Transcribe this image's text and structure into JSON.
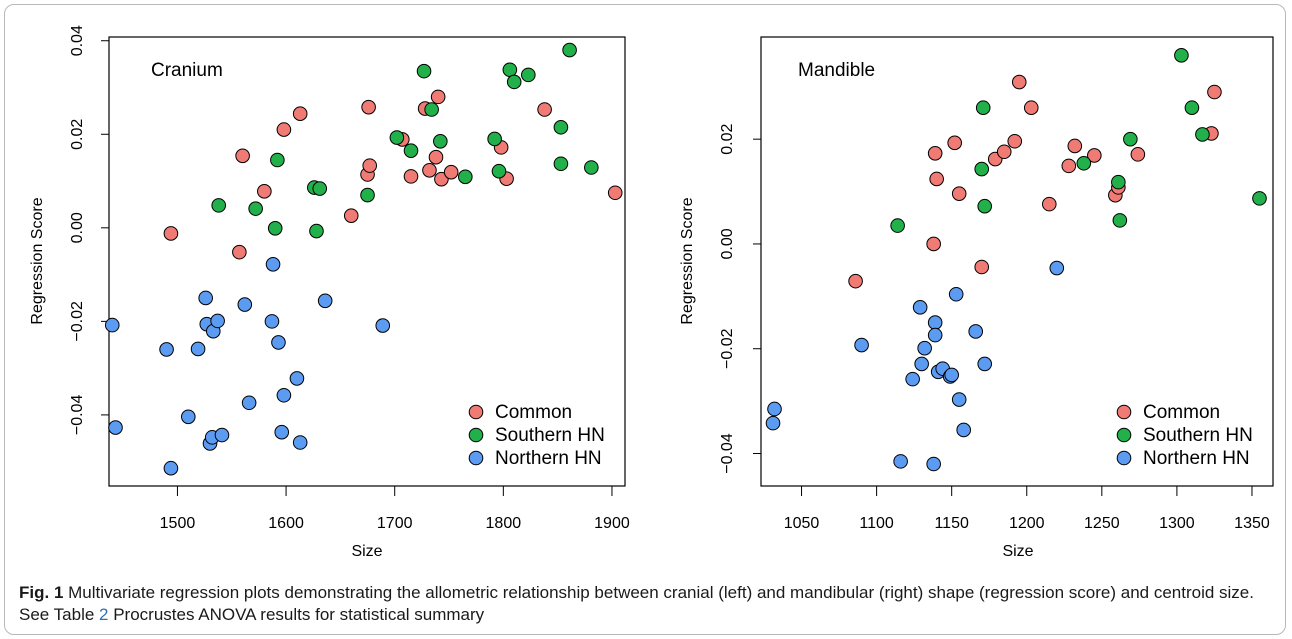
{
  "chart_data": [
    {
      "type": "scatter",
      "annotation": "Cranium",
      "xlabel": "Size",
      "ylabel": "Regression Score",
      "xlim": [
        1437,
        1912
      ],
      "ylim": [
        -0.0552,
        0.0408
      ],
      "xticks": [
        "1500",
        "1600",
        "1700",
        "1800",
        "1900"
      ],
      "yticks": [
        "−0.04",
        "−0.02",
        "0.00",
        "0.02",
        "0.04"
      ],
      "legend_position": "bottom-right",
      "grid": false,
      "series": [
        {
          "name": "Common",
          "color": "#f07a74",
          "points": [
            [
              1494,
              -0.0012
            ],
            [
              1557,
              -0.0052
            ],
            [
              1560,
              0.0154
            ],
            [
              1580,
              0.0078
            ],
            [
              1598,
              0.021
            ],
            [
              1613,
              0.0244
            ],
            [
              1660,
              0.0026
            ],
            [
              1675,
              0.0114
            ],
            [
              1676,
              0.0258
            ],
            [
              1677,
              0.0133
            ],
            [
              1707,
              0.0189
            ],
            [
              1715,
              0.011
            ],
            [
              1728,
              0.0255
            ],
            [
              1732,
              0.0123
            ],
            [
              1738,
              0.0151
            ],
            [
              1740,
              0.028
            ],
            [
              1743,
              0.0104
            ],
            [
              1752,
              0.0119
            ],
            [
              1798,
              0.0172
            ],
            [
              1803,
              0.0105
            ],
            [
              1838,
              0.0253
            ],
            [
              1903,
              0.0075
            ]
          ]
        },
        {
          "name": "Southern HN",
          "color": "#22b04b",
          "points": [
            [
              1538,
              0.0048
            ],
            [
              1572,
              0.0041
            ],
            [
              1590,
              -0.0001
            ],
            [
              1592,
              0.0145
            ],
            [
              1626,
              0.0086
            ],
            [
              1628,
              -0.0007
            ],
            [
              1631,
              0.0084
            ],
            [
              1675,
              0.007
            ],
            [
              1702,
              0.0193
            ],
            [
              1715,
              0.0165
            ],
            [
              1727,
              0.0335
            ],
            [
              1734,
              0.0253
            ],
            [
              1742,
              0.0185
            ],
            [
              1765,
              0.0109
            ],
            [
              1792,
              0.019
            ],
            [
              1796,
              0.0121
            ],
            [
              1806,
              0.0338
            ],
            [
              1810,
              0.0312
            ],
            [
              1823,
              0.0327
            ],
            [
              1853,
              0.0137
            ],
            [
              1853,
              0.0215
            ],
            [
              1861,
              0.038
            ],
            [
              1881,
              0.0129
            ]
          ]
        },
        {
          "name": "Northern HN",
          "color": "#5b9cf2",
          "points": [
            [
              1440,
              -0.0208
            ],
            [
              1443,
              -0.0427
            ],
            [
              1490,
              -0.026
            ],
            [
              1494,
              -0.0514
            ],
            [
              1510,
              -0.0404
            ],
            [
              1519,
              -0.0259
            ],
            [
              1526,
              -0.015
            ],
            [
              1527,
              -0.0206
            ],
            [
              1530,
              -0.0461
            ],
            [
              1532,
              -0.0448
            ],
            [
              1533,
              -0.0221
            ],
            [
              1537,
              -0.0199
            ],
            [
              1541,
              -0.0443
            ],
            [
              1562,
              -0.0164
            ],
            [
              1566,
              -0.0374
            ],
            [
              1587,
              -0.02
            ],
            [
              1588,
              -0.0078
            ],
            [
              1593,
              -0.0245
            ],
            [
              1596,
              -0.0437
            ],
            [
              1598,
              -0.0358
            ],
            [
              1610,
              -0.0322
            ],
            [
              1613,
              -0.0459
            ],
            [
              1636,
              -0.0156
            ],
            [
              1689,
              -0.0209
            ]
          ]
        }
      ]
    },
    {
      "type": "scatter",
      "annotation": "Mandible",
      "xlabel": "Size",
      "ylabel": "Regression Score",
      "xlim": [
        1023,
        1364
      ],
      "ylim": [
        -0.0462,
        0.0395
      ],
      "xticks": [
        "1050",
        "1100",
        "1150",
        "1200",
        "1250",
        "1300",
        "1350"
      ],
      "yticks": [
        "−0.04",
        "−0.02",
        "0.00",
        "0.02"
      ],
      "legend_position": "bottom-right",
      "grid": false,
      "series": [
        {
          "name": "Common",
          "color": "#f07a74",
          "points": [
            [
              1086,
              -0.0071
            ],
            [
              1138,
              0.0
            ],
            [
              1139,
              0.0173
            ],
            [
              1140,
              0.0124
            ],
            [
              1152,
              0.0193
            ],
            [
              1155,
              0.0096
            ],
            [
              1170,
              -0.0044
            ],
            [
              1179,
              0.0162
            ],
            [
              1185,
              0.0176
            ],
            [
              1192,
              0.0196
            ],
            [
              1195,
              0.0309
            ],
            [
              1203,
              0.026
            ],
            [
              1215,
              0.0076
            ],
            [
              1228,
              0.0149
            ],
            [
              1232,
              0.0187
            ],
            [
              1245,
              0.0169
            ],
            [
              1259,
              0.0093
            ],
            [
              1261,
              0.0108
            ],
            [
              1274,
              0.0171
            ],
            [
              1323,
              0.0211
            ],
            [
              1325,
              0.029
            ]
          ]
        },
        {
          "name": "Southern HN",
          "color": "#22b04b",
          "points": [
            [
              1114,
              0.0035
            ],
            [
              1170,
              0.0143
            ],
            [
              1171,
              0.026
            ],
            [
              1172,
              0.0072
            ],
            [
              1238,
              0.0154
            ],
            [
              1261,
              0.0118
            ],
            [
              1262,
              0.0045
            ],
            [
              1269,
              0.02
            ],
            [
              1303,
              0.036
            ],
            [
              1310,
              0.026
            ],
            [
              1317,
              0.0209
            ],
            [
              1355,
              0.0087
            ]
          ]
        },
        {
          "name": "Northern HN",
          "color": "#5b9cf2",
          "points": [
            [
              1032,
              -0.0315
            ],
            [
              1031,
              -0.0342
            ],
            [
              1090,
              -0.0193
            ],
            [
              1116,
              -0.0415
            ],
            [
              1124,
              -0.0258
            ],
            [
              1129,
              -0.0121
            ],
            [
              1130,
              -0.0229
            ],
            [
              1132,
              -0.0199
            ],
            [
              1139,
              -0.015
            ],
            [
              1139,
              -0.0174
            ],
            [
              1138,
              -0.042
            ],
            [
              1141,
              -0.0244
            ],
            [
              1144,
              -0.0238
            ],
            [
              1149,
              -0.0253
            ],
            [
              1150,
              -0.025
            ],
            [
              1153,
              -0.0096
            ],
            [
              1155,
              -0.0297
            ],
            [
              1158,
              -0.0355
            ],
            [
              1166,
              -0.0167
            ],
            [
              1172,
              -0.0229
            ],
            [
              1220,
              -0.0046
            ]
          ]
        }
      ]
    }
  ],
  "caption": {
    "label": "Fig. 1",
    "text_before_ref": " Multivariate regression plots demonstrating the allometric relationship between cranial (left) and mandibular (right) shape (regression score) and centroid size. See Table ",
    "table_ref": "2",
    "text_after_ref": " Procrustes ANOVA results for statistical summary"
  }
}
